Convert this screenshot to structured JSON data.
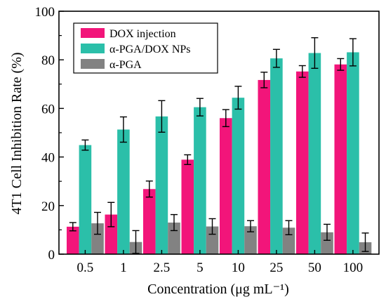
{
  "chart_data": {
    "type": "bar",
    "categories": [
      "0.5",
      "1",
      "2.5",
      "5",
      "10",
      "25",
      "50",
      "100"
    ],
    "xlabel": "Concentration (μg mL⁻¹)",
    "ylabel": "4T1 Cell Inhibition Rate (%)",
    "ylim": [
      0,
      100
    ],
    "yticks": [
      "0",
      "20",
      "40",
      "60",
      "80",
      "100"
    ],
    "grid": false,
    "legend_position": "top-left",
    "series": [
      {
        "name": "DOX injection",
        "color": "#f2157a",
        "values": [
          11.3,
          16.3,
          26.8,
          38.9,
          56.0,
          71.7,
          75.2,
          78.1
        ],
        "errors": [
          1.7,
          5.0,
          3.3,
          2.0,
          3.5,
          3.2,
          2.4,
          2.4
        ]
      },
      {
        "name": "α-PGA/DOX NPs",
        "color": "#2bbfa9",
        "values": [
          44.9,
          51.3,
          56.7,
          60.5,
          64.4,
          80.6,
          82.8,
          83.1
        ],
        "errors": [
          2.1,
          5.2,
          6.5,
          3.6,
          4.7,
          3.7,
          6.3,
          5.6
        ]
      },
      {
        "name": "α-PGA",
        "color": "#828282",
        "values": [
          12.7,
          5.0,
          13.0,
          11.4,
          11.5,
          10.9,
          9.0,
          4.9
        ],
        "errors": [
          4.5,
          4.7,
          3.3,
          3.2,
          2.3,
          2.9,
          3.3,
          3.8
        ]
      }
    ]
  }
}
